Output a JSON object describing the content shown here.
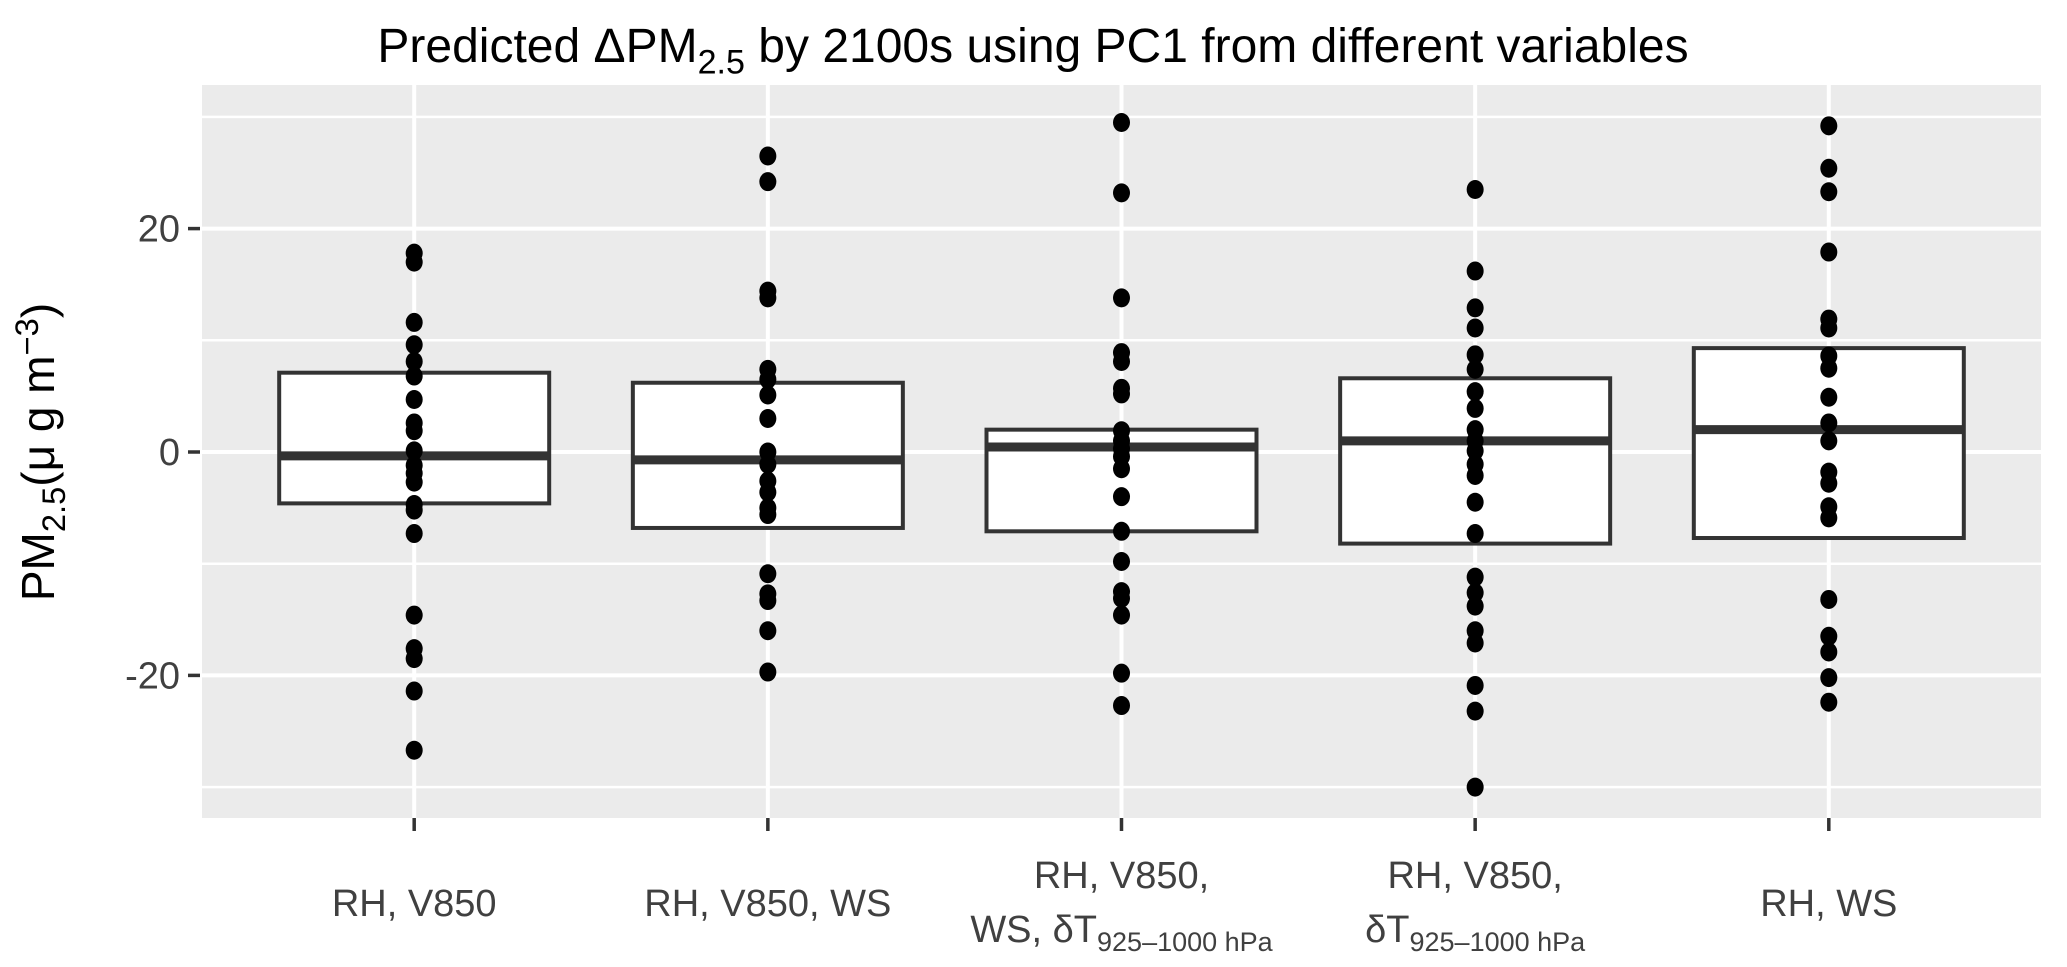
{
  "chart_data": {
    "type": "boxplot",
    "title": {
      "text": "Predicted ΔPM2.5 by 2100s using PC1 from different variables",
      "segments": [
        {
          "t": "Predicted ΔPM"
        },
        {
          "t": "2.5",
          "sub": true
        },
        {
          "t": " by 2100s using PC1 from different variables"
        }
      ]
    },
    "y_axis": {
      "label_text": "PM2.5 (μ g m−3)",
      "label_segments": [
        {
          "t": "PM"
        },
        {
          "t": "2.5",
          "sub": true
        },
        {
          "t": "("
        },
        {
          "t": "μ g m"
        },
        {
          "t": "−3",
          "sup": true
        },
        {
          "t": ")"
        }
      ],
      "ticks": [
        {
          "value": 20,
          "label": "20"
        },
        {
          "value": 0,
          "label": "0"
        },
        {
          "value": -20,
          "label": "-20"
        }
      ],
      "minor_gridlines": [
        30,
        10,
        -10,
        -30
      ],
      "range": [
        -32.8,
        32.9
      ],
      "grid": "on",
      "legend": "none"
    },
    "categories": [
      "RH, V850",
      "RH, V850, WS",
      "RH, V850, WS, δT925–1000 hPa",
      "RH, V850, δT925–1000 hPa",
      "RH, WS"
    ],
    "series": [
      {
        "name": "RH, V850",
        "label_lines": [
          [
            {
              "t": "RH, V850"
            }
          ]
        ],
        "box": {
          "q1": -4.6,
          "median": -0.35,
          "q3": 7.1
        },
        "points": [
          17.8,
          17.0,
          11.6,
          9.6,
          8.1,
          6.8,
          4.7,
          2.6,
          1.9,
          0.1,
          -1.2,
          -1.9,
          -2.7,
          -4.7,
          -5.2,
          -7.3,
          -14.6,
          -17.6,
          -18.5,
          -21.4,
          -26.7
        ]
      },
      {
        "name": "RH, V850, WS",
        "label_lines": [
          [
            {
              "t": "RH, V850, WS"
            }
          ]
        ],
        "box": {
          "q1": -6.8,
          "median": -0.7,
          "q3": 6.2
        },
        "points": [
          26.5,
          24.2,
          14.4,
          13.8,
          7.4,
          6.5,
          5.1,
          3.0,
          0.0,
          -1.1,
          -2.6,
          -3.6,
          -5.0,
          -5.6,
          -10.9,
          -12.7,
          -13.3,
          -16.0,
          -19.7
        ]
      },
      {
        "name": "RH, V850, WS, δT925–1000 hPa",
        "label_lines": [
          [
            {
              "t": "RH, V850,"
            }
          ],
          [
            {
              "t": "WS, δT"
            },
            {
              "t": "925–1000 hPa",
              "sub": true
            }
          ]
        ],
        "box": {
          "q1": -7.1,
          "median": 0.45,
          "q3": 2.0
        },
        "points": [
          29.5,
          23.2,
          13.8,
          8.9,
          8.1,
          5.7,
          5.2,
          1.9,
          1.0,
          0.3,
          -0.4,
          -1.5,
          -4.0,
          -7.1,
          -9.8,
          -12.5,
          -13.1,
          -14.6,
          -19.8,
          -22.7
        ]
      },
      {
        "name": "RH, V850, δT925–1000 hPa",
        "label_lines": [
          [
            {
              "t": "RH, V850,"
            }
          ],
          [
            {
              "t": "δT"
            },
            {
              "t": "925–1000 hPa",
              "sub": true
            }
          ]
        ],
        "box": {
          "q1": -8.2,
          "median": 1.0,
          "q3": 6.6
        },
        "points": [
          23.5,
          16.2,
          12.9,
          11.1,
          8.7,
          7.4,
          5.4,
          3.9,
          2.0,
          1.0,
          0.1,
          -1.1,
          -2.1,
          -4.5,
          -7.3,
          -11.2,
          -12.6,
          -13.8,
          -16.0,
          -17.1,
          -20.9,
          -23.2,
          -30.0
        ]
      },
      {
        "name": "RH, WS",
        "label_lines": [
          [
            {
              "t": "RH, WS"
            }
          ]
        ],
        "box": {
          "q1": -7.7,
          "median": 2.0,
          "q3": 9.3
        },
        "points": [
          29.2,
          25.4,
          23.3,
          17.9,
          11.9,
          11.1,
          8.6,
          7.5,
          4.9,
          2.6,
          1.0,
          -1.8,
          -2.8,
          -4.9,
          -5.9,
          -13.2,
          -16.5,
          -17.9,
          -20.2,
          -22.4
        ]
      }
    ],
    "colors": {
      "panel_background": "#EBEBEB",
      "gridline": "#FFFFFF",
      "box_outline": "#333333",
      "box_fill": "#FFFFFF",
      "point": "#000000",
      "axis_text": "#404040",
      "tick_mark": "#333333",
      "title_text": "#000000"
    }
  }
}
